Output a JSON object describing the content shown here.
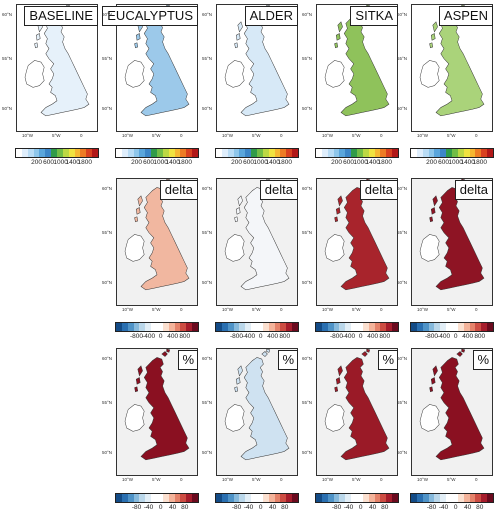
{
  "rows": [
    {
      "row": "absolute",
      "panels": [
        {
          "label": "BASELINE",
          "col": 0
        },
        {
          "label": "EUCALYPTUS",
          "col": 1
        },
        {
          "label": "ALDER",
          "col": 2
        },
        {
          "label": "SITKA",
          "col": 3
        },
        {
          "label": "ASPEN",
          "col": 4
        }
      ],
      "colorbar": {
        "ticks": [
          "200",
          "600",
          "1000",
          "1400",
          "1800"
        ],
        "colors": [
          "#ffffff",
          "#dfeefc",
          "#b9dcf5",
          "#8ec6ea",
          "#5aa6dc",
          "#3c86c8",
          "#2f9b4a",
          "#71bd46",
          "#bcd843",
          "#f0e340",
          "#f6b731",
          "#ee7c24",
          "#d9411f",
          "#b21818"
        ]
      }
    },
    {
      "row": "delta",
      "panels": [
        {
          "label": "delta",
          "col": 1
        },
        {
          "label": "delta",
          "col": 2
        },
        {
          "label": "delta",
          "col": 3
        },
        {
          "label": "delta",
          "col": 4
        }
      ],
      "colorbar": {
        "ticks": [
          "-800",
          "-400",
          "0",
          "400",
          "800"
        ],
        "colors": [
          "#134b86",
          "#2a6fb0",
          "#4f93c7",
          "#86b9dc",
          "#bad7ea",
          "#e2eef6",
          "#ffffff",
          "#ffffff",
          "#fbe0d0",
          "#f4b39a",
          "#e5826a",
          "#cd4d43",
          "#a61d2c",
          "#6b0a1e"
        ]
      }
    },
    {
      "row": "percent",
      "panels": [
        {
          "label": "%",
          "col": 1
        },
        {
          "label": "%",
          "col": 2
        },
        {
          "label": "%",
          "col": 3
        },
        {
          "label": "%",
          "col": 4
        }
      ],
      "colorbar": {
        "ticks": [
          "-80",
          "-40",
          "0",
          "40",
          "80"
        ],
        "colors": [
          "#134b86",
          "#2a6fb0",
          "#4f93c7",
          "#86b9dc",
          "#bad7ea",
          "#e2eef6",
          "#ffffff",
          "#ffffff",
          "#fbe0d0",
          "#f4b39a",
          "#e5826a",
          "#cd4d43",
          "#a61d2c",
          "#6b0a1e"
        ]
      }
    }
  ],
  "axes": {
    "lat_labels": [
      "60°N",
      "55°N",
      "50°N"
    ],
    "lon_labels": [
      "10°W",
      "5°W",
      "0"
    ]
  },
  "land_fill": {
    "BASELINE": "#e6f1fa",
    "EUCALYPTUS": "#9cc9ea",
    "ALDER": "#d7e9f7",
    "SITKA": "#8fc25b",
    "ASPEN": "#aad37a",
    "delta_EUCALYPTUS": "#f1b7a0",
    "delta_ALDER": "#f4f6f9",
    "delta_SITKA": "#a8242c",
    "delta_ASPEN": "#8e1424",
    "pct_EUCALYPTUS": "#8a1021",
    "pct_ALDER": "#cfe2f1",
    "pct_SITKA": "#9a1a27",
    "pct_ASPEN": "#8a1021"
  }
}
